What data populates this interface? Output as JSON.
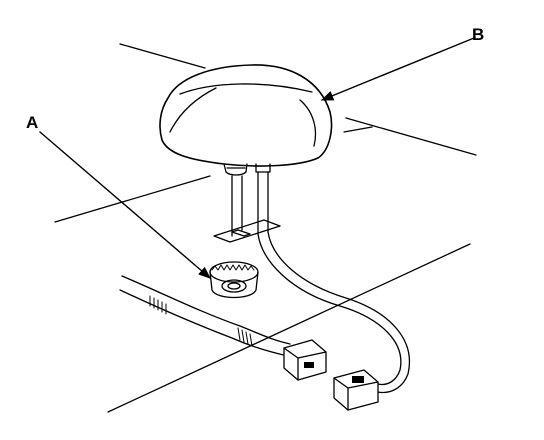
{
  "callouts": {
    "a": "A",
    "b": "B"
  },
  "colors": {
    "ink": "#000000",
    "paper": "#ffffff"
  }
}
